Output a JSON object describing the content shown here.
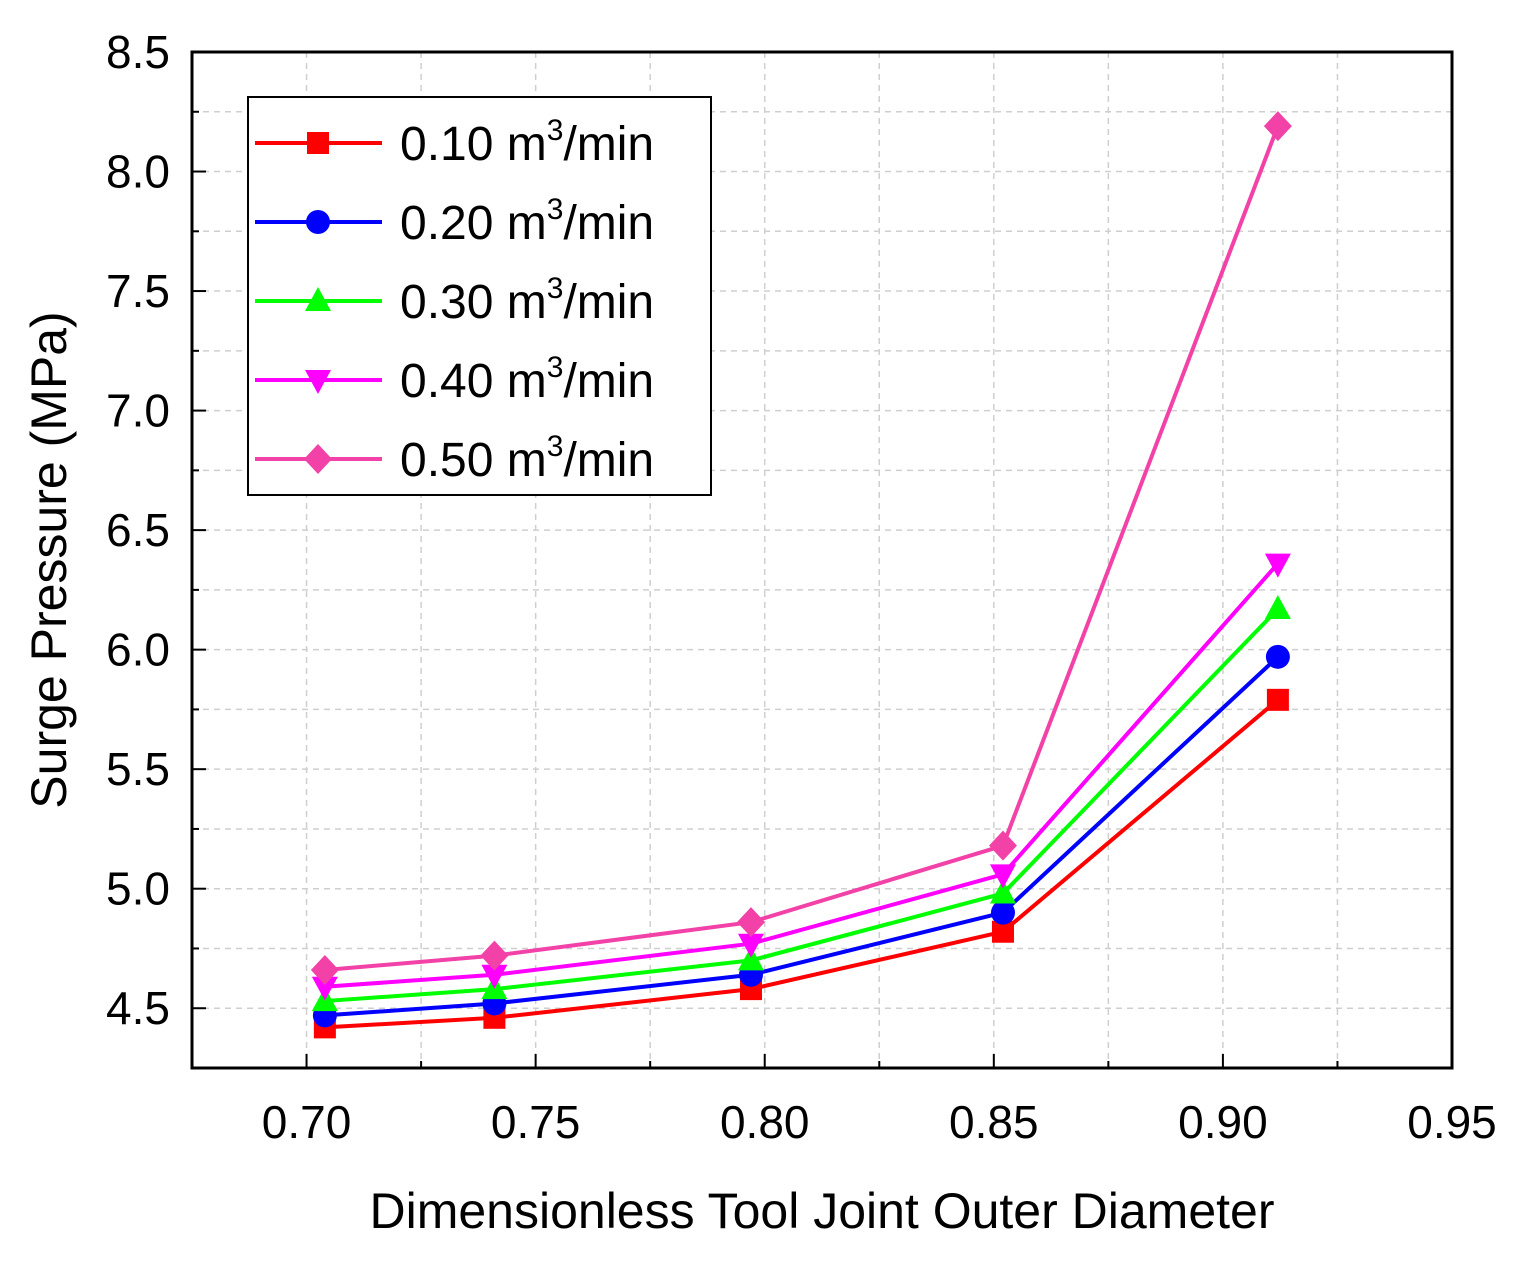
{
  "chart_data": {
    "type": "line",
    "title": "",
    "xlabel": "Dimensionless Tool Joint Outer Diameter",
    "ylabel": "Surge Pressure (MPa)",
    "xlim": [
      0.675,
      0.95
    ],
    "ylim": [
      4.25,
      8.5
    ],
    "xticks": [
      "0.70",
      "0.75",
      "0.80",
      "0.85",
      "0.90",
      "0.95"
    ],
    "yticks": [
      "4.5",
      "5.0",
      "5.5",
      "6.0",
      "6.5",
      "7.0",
      "7.5",
      "8.0",
      "8.5"
    ],
    "grid": true,
    "legend_position": "top-left",
    "x": [
      0.704,
      0.741,
      0.797,
      0.852,
      0.912
    ],
    "series": [
      {
        "name": "0.10 m3/min",
        "label_main": "0.10 m",
        "label_sup": "3",
        "label_tail": "/min",
        "color": "#FF0000",
        "marker": "square",
        "values": [
          4.42,
          4.46,
          4.58,
          4.82,
          5.79
        ]
      },
      {
        "name": "0.20 m3/min",
        "label_main": "0.20 m",
        "label_sup": "3",
        "label_tail": "/min",
        "color": "#0000FF",
        "marker": "circle",
        "values": [
          4.47,
          4.52,
          4.64,
          4.9,
          5.97
        ]
      },
      {
        "name": "0.30 m3/min",
        "label_main": "0.30 m",
        "label_sup": "3",
        "label_tail": "/min",
        "color": "#00FF00",
        "marker": "triangle-up",
        "values": [
          4.53,
          4.58,
          4.7,
          4.98,
          6.17
        ]
      },
      {
        "name": "0.40 m3/min",
        "label_main": "0.40 m",
        "label_sup": "3",
        "label_tail": "/min",
        "color": "#FF00FF",
        "marker": "triangle-down",
        "values": [
          4.59,
          4.64,
          4.77,
          5.06,
          6.36
        ]
      },
      {
        "name": "0.50 m3/min",
        "label_main": "0.50 m",
        "label_sup": "3",
        "label_tail": "/min",
        "color": "#F242A8",
        "marker": "diamond",
        "values": [
          4.66,
          4.72,
          4.86,
          5.18,
          8.19
        ]
      }
    ]
  }
}
